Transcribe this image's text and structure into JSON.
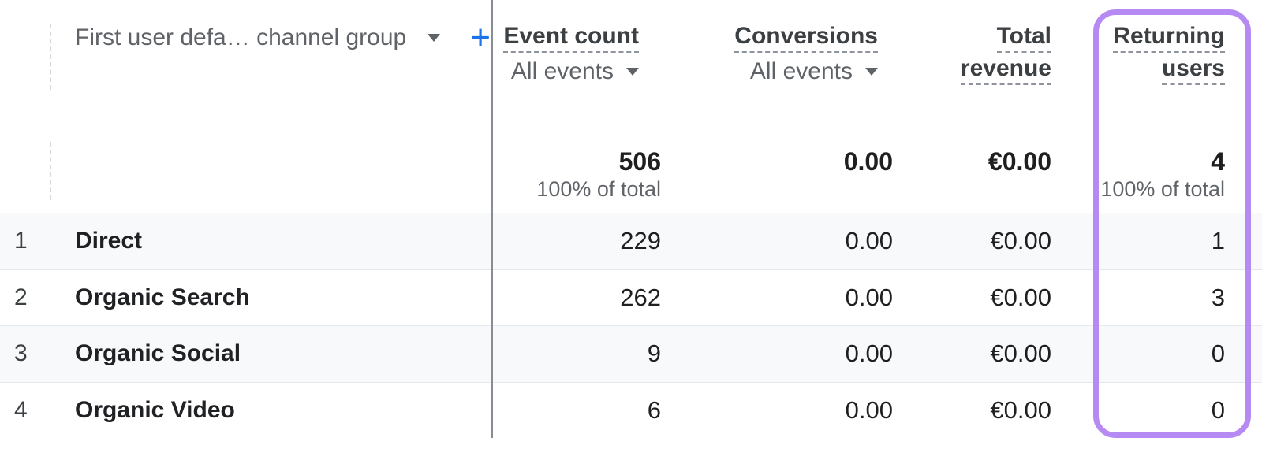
{
  "table": {
    "dimension": {
      "label": "First user defa… channel group"
    },
    "metric_headers": [
      {
        "title": "Event count",
        "subtitle": "All events"
      },
      {
        "title": "Conversions",
        "subtitle": "All events"
      },
      {
        "title_lines": [
          "Total",
          "revenue"
        ]
      },
      {
        "title_lines": [
          "Returning",
          "users"
        ],
        "highlighted": true
      }
    ],
    "totals": {
      "event_count": "506",
      "event_count_note": "100% of total",
      "conversions": "0.00",
      "conversions_note": "",
      "total_revenue": "€0.00",
      "total_revenue_note": "",
      "returning_users": "4",
      "returning_users_note": "100% of total"
    },
    "rows": [
      {
        "num": "1",
        "label": "Direct",
        "event_count": "229",
        "conversions": "0.00",
        "total_revenue": "€0.00",
        "returning_users": "1"
      },
      {
        "num": "2",
        "label": "Organic Search",
        "event_count": "262",
        "conversions": "0.00",
        "total_revenue": "€0.00",
        "returning_users": "3"
      },
      {
        "num": "3",
        "label": "Organic Social",
        "event_count": "9",
        "conversions": "0.00",
        "total_revenue": "€0.00",
        "returning_users": "0"
      },
      {
        "num": "4",
        "label": "Organic Video",
        "event_count": "6",
        "conversions": "0.00",
        "total_revenue": "€0.00",
        "returning_users": "0"
      }
    ],
    "icons": {
      "add_metric": "plus-icon",
      "dropdown": "caret-down-icon"
    },
    "colors": {
      "accent_blue": "#1a73e8",
      "highlight_purple": "#b58af3",
      "alt_row_bg": "#f8f9fa"
    }
  }
}
